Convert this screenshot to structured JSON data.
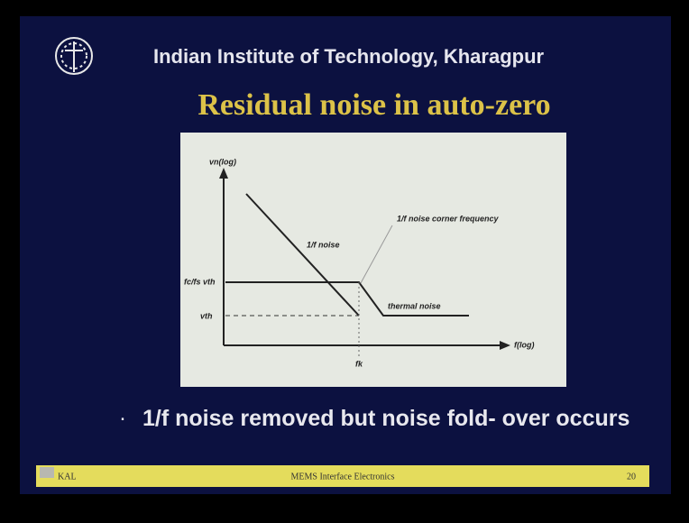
{
  "header": {
    "institute": "Indian Institute of Technology, Kharagpur",
    "title": "Residual noise in auto-zero"
  },
  "diagram": {
    "y_axis_label": "vn(log)",
    "x_axis_label": "f(log)",
    "corner_label": "1/f noise corner frequency",
    "flicker_label": "1/f noise",
    "thermal_label": "thermal noise",
    "upper_level_label": "fc/fs vth",
    "lower_level_label": "vth",
    "frequency_label": "fk"
  },
  "bullets": [
    "1/f noise removed but noise fold- over occurs"
  ],
  "footer": {
    "left": "KAL",
    "center": "MEMS Interface Electronics",
    "page": "20"
  }
}
